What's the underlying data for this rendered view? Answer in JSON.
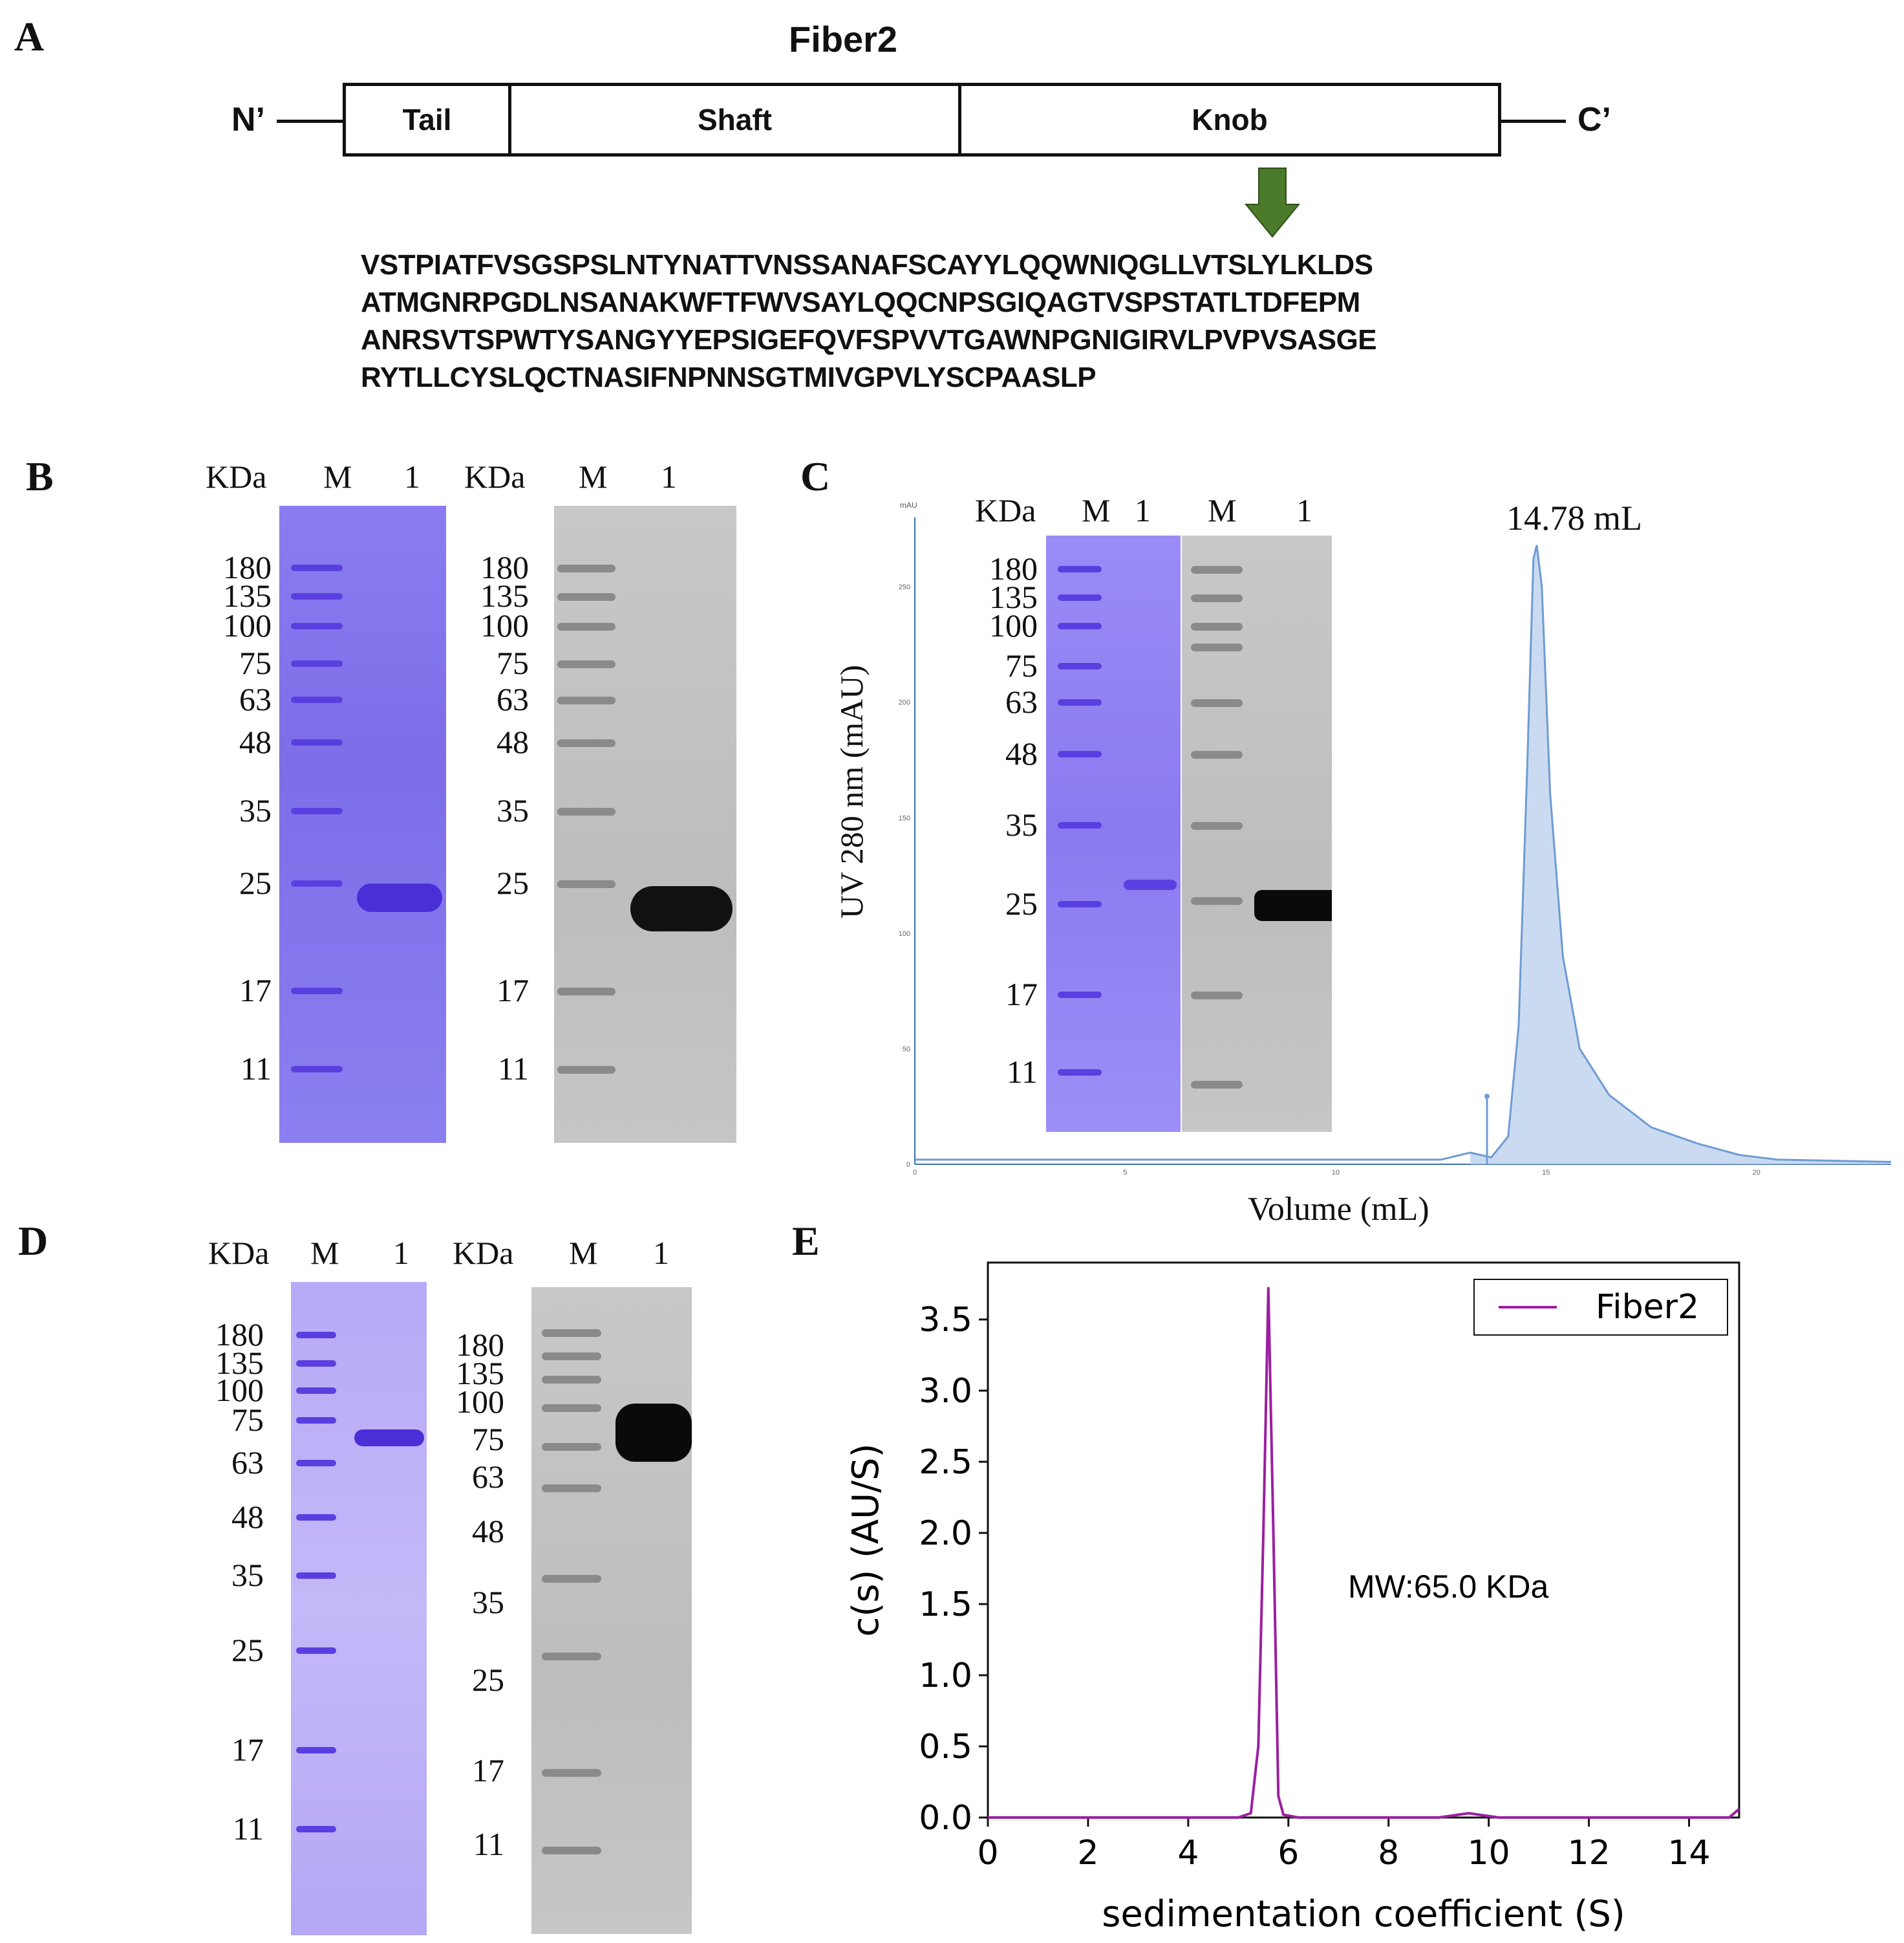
{
  "panels": {
    "A": "A",
    "B": "B",
    "C": "C",
    "D": "D",
    "E": "E"
  },
  "panel_a": {
    "title": "Fiber2",
    "n_term": "N’",
    "c_term": "C’",
    "domains": [
      {
        "label": "Tail",
        "color": "#fadb8c"
      },
      {
        "label": "Shaft",
        "color": "#8eaadc"
      },
      {
        "label": "Knob",
        "color": "#70a05a"
      }
    ],
    "sequence": [
      "VSTPIATFVSGSPSLNTYNATTVNSSANAFSCAYYLQQWNIQGLLVTSLYLKLDS",
      "ATMGNRPGDLNSANAKWFTFWVSAYLQQCNPSGIQAGTVSPSTATLTDFEPM",
      "ANRSVTSPWTYSANGYYEPSIGEFQVFSPVVTGAWNPGNIGIRVLPVPVSASGE",
      "RYTLLCYSLQCTNASIFNPNNSGTMIVGPVLYSCPAASLP"
    ],
    "arrow_color": "#4a7a2a"
  },
  "gel_headers": {
    "kda": "KDa",
    "marker": "M",
    "lane": "1"
  },
  "panel_b": {
    "markers": [
      "180",
      "135",
      "100",
      "75",
      "63",
      "48",
      "35",
      "25",
      "17",
      "11"
    ]
  },
  "panel_c": {
    "markers": [
      "180",
      "135",
      "100",
      "75",
      "63",
      "48",
      "35",
      "25",
      "17",
      "11"
    ],
    "ylabel": "UV 280 nm (mAU)",
    "xlabel": "Volume (mL)",
    "peak_label": "14.78 mL",
    "y_unit": "mAU",
    "y_ticks": [
      "250",
      "200",
      "150",
      "100",
      "50",
      "0"
    ],
    "x_ticks": [
      "0",
      "5",
      "10",
      "15",
      "20"
    ]
  },
  "panel_d": {
    "markers_left": [
      "180",
      "135",
      "100",
      "75",
      "63",
      "48",
      "35",
      "25",
      "17",
      "11"
    ],
    "markers_right": [
      "180",
      "135",
      "100",
      "75",
      "63",
      "48",
      "35",
      "25",
      "17",
      "11"
    ]
  },
  "chart_data": {
    "type": "line",
    "xlabel": "sedimentation coefficient (S)",
    "ylabel": "c(s) (AU/S)",
    "xlim": [
      0,
      15
    ],
    "ylim": [
      0,
      3.9
    ],
    "x_ticks": [
      "0",
      "2",
      "4",
      "6",
      "8",
      "10",
      "12",
      "14"
    ],
    "y_ticks": [
      "0.0",
      "0.5",
      "1.0",
      "1.5",
      "2.0",
      "2.5",
      "3.0",
      "3.5"
    ],
    "legend_position": "top-right",
    "annotation": "MW:65.0 KDa",
    "series": [
      {
        "name": "Fiber2",
        "color": "#9b1fa0",
        "x": [
          0,
          5.0,
          5.25,
          5.4,
          5.5,
          5.6,
          5.7,
          5.8,
          5.9,
          6.2,
          9.0,
          9.6,
          10.2,
          14.8,
          15.0
        ],
        "y": [
          0,
          0,
          0.03,
          0.5,
          2.0,
          3.72,
          2.0,
          0.15,
          0.02,
          0,
          0,
          0.03,
          0,
          0,
          0.06
        ]
      }
    ]
  }
}
